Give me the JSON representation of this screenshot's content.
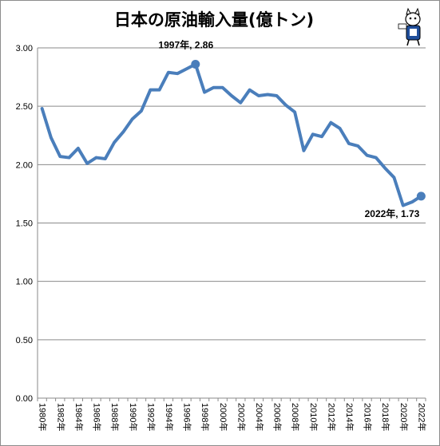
{
  "chart_data": {
    "type": "line",
    "title": "日本の原油輸入量(億トン)",
    "x": [
      1980,
      1981,
      1982,
      1983,
      1984,
      1985,
      1986,
      1987,
      1988,
      1989,
      1990,
      1991,
      1992,
      1993,
      1994,
      1995,
      1996,
      1997,
      1998,
      1999,
      2000,
      2001,
      2002,
      2003,
      2004,
      2005,
      2006,
      2007,
      2008,
      2009,
      2010,
      2011,
      2012,
      2013,
      2014,
      2015,
      2016,
      2017,
      2018,
      2019,
      2020,
      2021,
      2022
    ],
    "xtick_labels": [
      "1980年",
      "1982年",
      "1984年",
      "1986年",
      "1988年",
      "1990年",
      "1992年",
      "1994年",
      "1996年",
      "1998年",
      "2000年",
      "2002年",
      "2004年",
      "2006年",
      "2008年",
      "2010年",
      "2012年",
      "2014年",
      "2016年",
      "2018年",
      "2020年",
      "2022年"
    ],
    "series": [
      {
        "values": [
          2.48,
          2.23,
          2.07,
          2.06,
          2.14,
          2.01,
          2.06,
          2.05,
          2.19,
          2.28,
          2.39,
          2.46,
          2.64,
          2.64,
          2.79,
          2.78,
          2.82,
          2.86,
          2.62,
          2.66,
          2.66,
          2.59,
          2.53,
          2.64,
          2.59,
          2.6,
          2.59,
          2.51,
          2.45,
          2.12,
          2.26,
          2.24,
          2.36,
          2.31,
          2.18,
          2.16,
          2.08,
          2.06,
          1.97,
          1.89,
          1.65,
          1.68,
          1.73
        ],
        "color": "#4a7ebb"
      }
    ],
    "ylim": [
      0,
      3.0
    ],
    "yticks": [
      "0.00",
      "0.50",
      "1.00",
      "1.50",
      "2.00",
      "2.50",
      "3.00"
    ],
    "grid": true,
    "annotations": [
      {
        "year": 1997,
        "value": 2.86,
        "text": "1997年, 2.86"
      },
      {
        "year": 2022,
        "value": 1.73,
        "text": "2022年, 1.73"
      }
    ]
  }
}
